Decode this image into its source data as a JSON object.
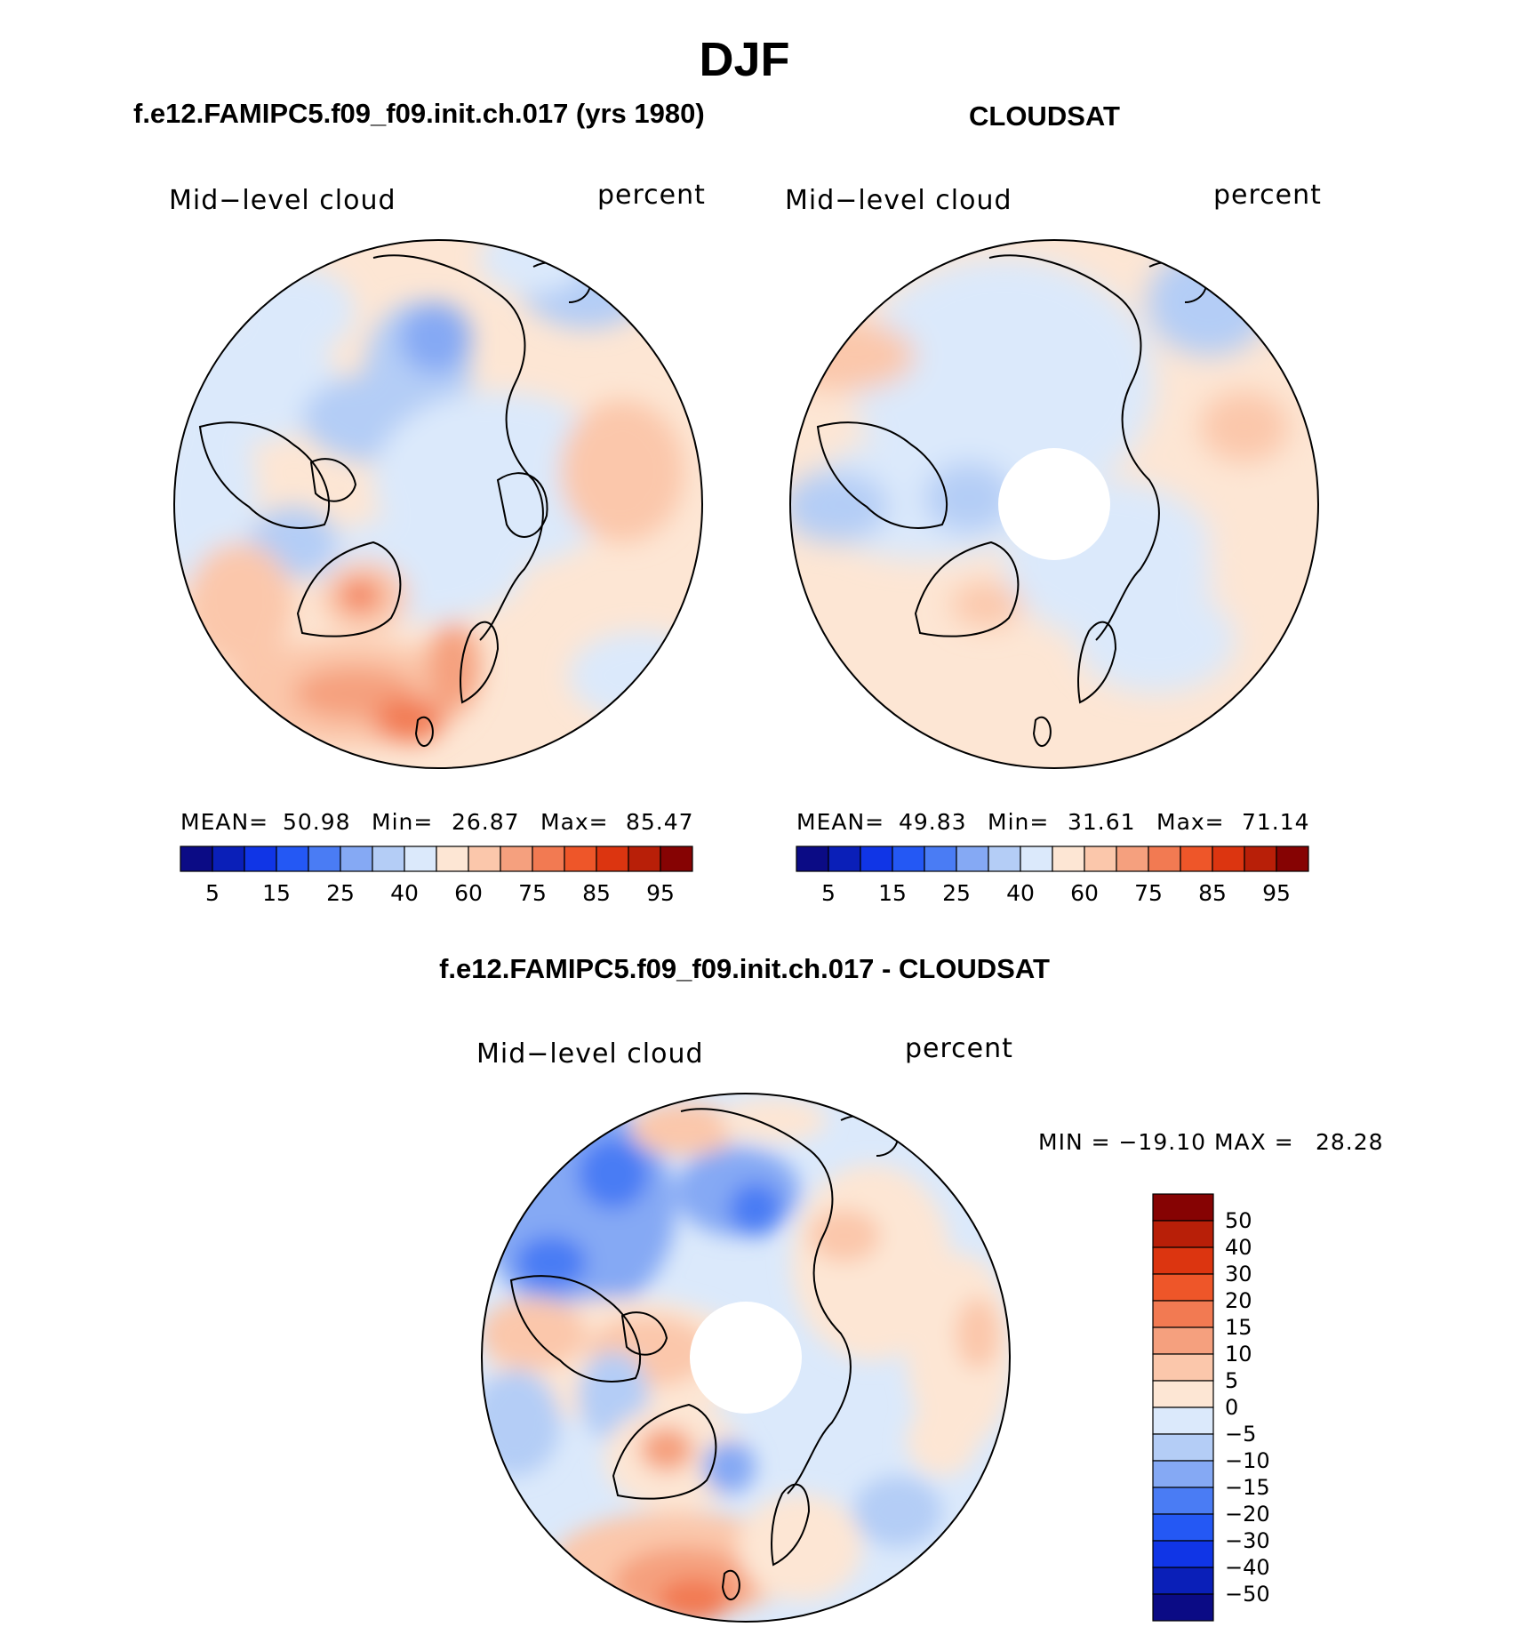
{
  "figure": {
    "season_title": "DJF",
    "panel_titles": {
      "model": "f.e12.FAMIPC5.f09_f09.init.ch.017 (yrs 1980)",
      "obs": "CLOUDSAT",
      "diff": "f.e12.FAMIPC5.f09_f09.init.ch.017 - CLOUDSAT"
    }
  },
  "panels": {
    "model": {
      "variable": "Mid−level cloud",
      "units": "percent",
      "mean_label": "MEAN=",
      "mean_value": "50.98",
      "min_label": "Min=",
      "min_value": "26.87",
      "max_label": "Max=",
      "max_value": "85.47"
    },
    "obs": {
      "variable": "Mid−level cloud",
      "units": "percent",
      "mean_label": "MEAN=",
      "mean_value": "49.83",
      "min_label": "Min=",
      "min_value": "31.61",
      "max_label": "Max=",
      "max_value": "71.14"
    },
    "diff": {
      "variable": "Mid−level cloud",
      "units": "percent",
      "minmax_text": "MIN = −19.10 MAX =",
      "max_value": "28.28"
    }
  },
  "colorbars": {
    "abs_ticks": [
      "5",
      "15",
      "25",
      "40",
      "60",
      "75",
      "85",
      "95"
    ],
    "abs_colors": [
      "#0b0b85",
      "#0a1fb8",
      "#1035e6",
      "#2458f4",
      "#4a7cf4",
      "#85a9f4",
      "#b4cdf6",
      "#dbe9fb",
      "#fde6d4",
      "#fbc7ab",
      "#f5a07e",
      "#f27a52",
      "#ee5629",
      "#dc3510",
      "#b81f08",
      "#860303"
    ],
    "diff_ticks": [
      "50",
      "40",
      "30",
      "20",
      "15",
      "10",
      "5",
      "0",
      "−5",
      "−10",
      "−15",
      "−20",
      "−30",
      "−40",
      "−50"
    ],
    "diff_colors_top_to_bottom": [
      "#860303",
      "#b81f08",
      "#dc3510",
      "#ee5629",
      "#f27a52",
      "#f5a07e",
      "#fbc7ab",
      "#fde6d4",
      "#dbe9fb",
      "#b4cdf6",
      "#85a9f4",
      "#4a7cf4",
      "#2458f4",
      "#1035e6",
      "#0a1fb8",
      "#0b0b85"
    ]
  }
}
